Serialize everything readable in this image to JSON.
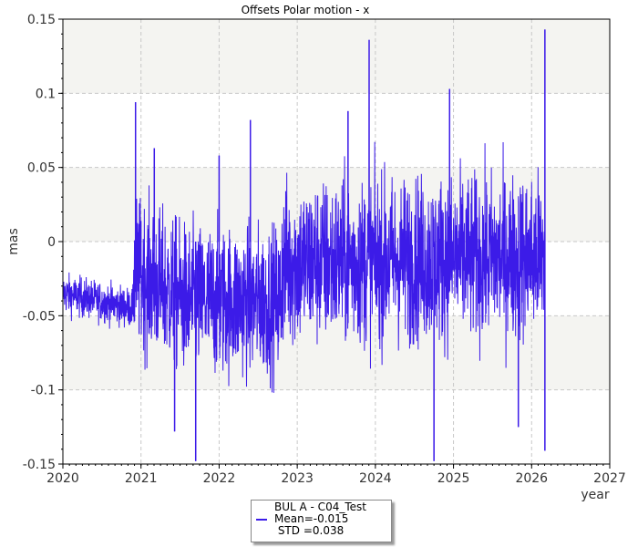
{
  "chart_data": {
    "type": "line",
    "title": "Offsets Polar motion - x",
    "ylabel": "mas",
    "xlabel": "year",
    "xlim": [
      2020,
      2027
    ],
    "ylim": [
      -0.15,
      0.15
    ],
    "x_ticks": [
      "2020",
      "2021",
      "2022",
      "2023",
      "2024",
      "2025",
      "2026",
      "2027"
    ],
    "y_ticks": [
      "0.15",
      "0.1",
      "0.05",
      "0",
      "-0.05",
      "-0.1",
      "-0.15"
    ],
    "grid": true,
    "series_color": "#3c1be8",
    "band_color": "#f4f4f1",
    "series": [
      {
        "name": "BUL A - C04_Test",
        "segments": [
          {
            "x_start": 2020.0,
            "x_end": 2020.9,
            "center_start": -0.035,
            "center_end": -0.045,
            "amplitude": 0.012
          },
          {
            "x_start": 2020.9,
            "x_end": 2021.6,
            "center_start": -0.02,
            "center_end": -0.04,
            "amplitude": 0.045
          },
          {
            "x_start": 2021.6,
            "x_end": 2022.8,
            "center_start": -0.04,
            "center_end": -0.04,
            "amplitude": 0.045
          },
          {
            "x_start": 2022.8,
            "x_end": 2026.17,
            "center_start": -0.015,
            "center_end": -0.01,
            "amplitude": 0.05
          }
        ],
        "spikes": [
          {
            "x": 2020.93,
            "y": 0.094
          },
          {
            "x": 2021.17,
            "y": 0.063
          },
          {
            "x": 2021.43,
            "y": -0.128
          },
          {
            "x": 2021.7,
            "y": -0.148
          },
          {
            "x": 2022.0,
            "y": 0.058
          },
          {
            "x": 2022.4,
            "y": 0.082
          },
          {
            "x": 2023.65,
            "y": 0.088
          },
          {
            "x": 2023.92,
            "y": 0.136
          },
          {
            "x": 2024.75,
            "y": -0.148
          },
          {
            "x": 2024.95,
            "y": 0.103
          },
          {
            "x": 2025.83,
            "y": -0.125
          },
          {
            "x": 2026.17,
            "y": 0.143
          },
          {
            "x": 2026.17,
            "y": -0.141
          }
        ]
      }
    ],
    "legend": {
      "name": "BUL A - C04_Test",
      "mean": "Mean=-0.015",
      "std": " STD =0.038"
    }
  }
}
